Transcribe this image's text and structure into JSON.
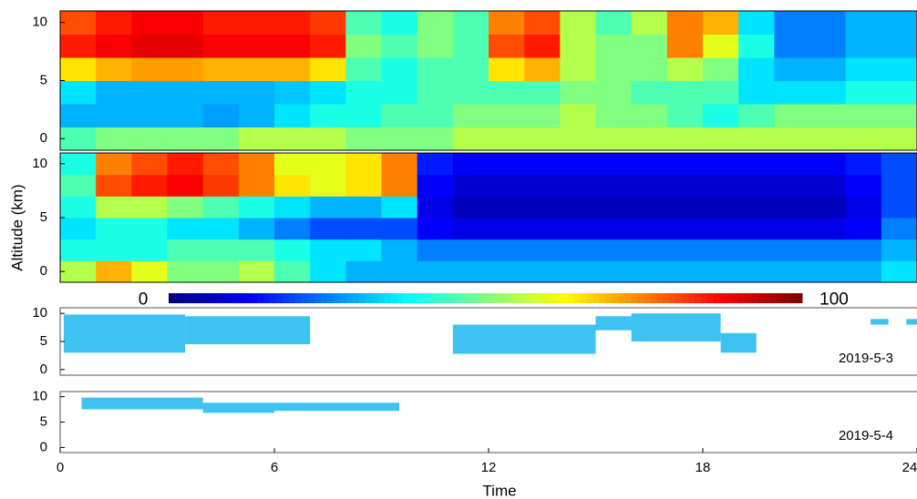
{
  "chart_data": [
    {
      "type": "heatmap",
      "ylabel": "Altitude (km)",
      "colormap": "jet",
      "clim": [
        0,
        100
      ],
      "xbins": [
        0,
        1,
        2,
        3,
        4,
        5,
        6,
        7,
        8,
        9,
        10,
        11,
        12,
        13,
        14,
        15,
        16,
        17,
        18,
        19,
        20,
        21,
        22,
        23,
        24
      ],
      "ybins": [
        -1,
        1,
        3,
        5,
        7,
        9,
        11
      ],
      "xlim": [
        0,
        24
      ],
      "ylim": [
        -1,
        11
      ],
      "yticks": [
        0,
        5,
        10
      ],
      "values": [
        [
          45,
          50,
          50,
          50,
          50,
          55,
          55,
          55,
          50,
          50,
          50,
          55,
          55,
          55,
          55,
          55,
          55,
          55,
          55,
          55,
          55,
          55,
          55,
          55
        ],
        [
          30,
          30,
          30,
          30,
          28,
          30,
          35,
          40,
          40,
          45,
          45,
          50,
          50,
          50,
          55,
          50,
          50,
          45,
          40,
          45,
          50,
          50,
          50,
          50
        ],
        [
          35,
          30,
          30,
          30,
          30,
          30,
          32,
          35,
          40,
          40,
          45,
          45,
          45,
          45,
          50,
          50,
          45,
          45,
          45,
          35,
          35,
          35,
          40,
          40
        ],
        [
          65,
          70,
          72,
          72,
          70,
          70,
          70,
          65,
          45,
          40,
          45,
          45,
          65,
          70,
          55,
          50,
          50,
          55,
          50,
          35,
          30,
          30,
          35,
          35
        ],
        [
          85,
          88,
          90,
          90,
          88,
          88,
          88,
          85,
          50,
          45,
          50,
          45,
          80,
          85,
          55,
          50,
          50,
          75,
          60,
          40,
          25,
          25,
          30,
          30
        ],
        [
          80,
          85,
          88,
          88,
          85,
          85,
          85,
          82,
          45,
          40,
          50,
          45,
          75,
          80,
          55,
          45,
          55,
          75,
          70,
          35,
          25,
          25,
          30,
          30
        ]
      ]
    },
    {
      "type": "heatmap",
      "colormap": "jet",
      "clim": [
        0,
        100
      ],
      "xbins": [
        0,
        1,
        2,
        3,
        4,
        5,
        6,
        7,
        8,
        9,
        10,
        11,
        12,
        13,
        14,
        15,
        16,
        17,
        18,
        19,
        20,
        21,
        22,
        23,
        24
      ],
      "ybins": [
        -1,
        1,
        3,
        5,
        7,
        9,
        11
      ],
      "xlim": [
        0,
        24
      ],
      "ylim": [
        -1,
        11
      ],
      "yticks": [
        0,
        5,
        10
      ],
      "values": [
        [
          55,
          70,
          60,
          50,
          50,
          55,
          45,
          35,
          30,
          30,
          30,
          30,
          30,
          30,
          30,
          30,
          30,
          30,
          30,
          30,
          30,
          30,
          30,
          35
        ],
        [
          40,
          40,
          40,
          45,
          45,
          45,
          40,
          35,
          35,
          30,
          25,
          25,
          25,
          25,
          25,
          25,
          25,
          25,
          25,
          25,
          25,
          25,
          25,
          30
        ],
        [
          35,
          40,
          40,
          35,
          35,
          30,
          25,
          20,
          20,
          20,
          12,
          10,
          10,
          10,
          10,
          10,
          10,
          10,
          10,
          10,
          10,
          10,
          12,
          25
        ],
        [
          40,
          55,
          55,
          50,
          45,
          40,
          35,
          30,
          30,
          35,
          10,
          6,
          6,
          6,
          6,
          6,
          6,
          6,
          6,
          6,
          6,
          6,
          10,
          20
        ],
        [
          45,
          80,
          85,
          88,
          82,
          75,
          65,
          60,
          65,
          75,
          12,
          8,
          8,
          8,
          8,
          8,
          8,
          8,
          8,
          8,
          8,
          8,
          12,
          20
        ],
        [
          40,
          75,
          80,
          85,
          80,
          75,
          60,
          60,
          65,
          75,
          15,
          12,
          12,
          12,
          12,
          12,
          12,
          12,
          12,
          12,
          12,
          12,
          15,
          20
        ]
      ]
    },
    {
      "type": "colorbar",
      "colormap": "jet",
      "clim": [
        0,
        100
      ],
      "cticks": [
        0,
        100
      ]
    },
    {
      "type": "cloud",
      "label": "2019-5-3",
      "color": "#3ec3f0",
      "xlim": [
        0,
        24
      ],
      "ylim": [
        -1,
        11
      ],
      "yticks": [
        0,
        5,
        10
      ],
      "segments": [
        [
          0.1,
          3.5,
          3,
          9.8
        ],
        [
          3.5,
          7,
          4.5,
          9.5
        ],
        [
          11,
          15,
          2.8,
          8
        ],
        [
          15,
          16.2,
          7,
          9.5
        ],
        [
          16,
          18.5,
          5,
          10
        ],
        [
          18.5,
          19.5,
          3,
          6.5
        ],
        [
          22.7,
          23.2,
          8,
          9
        ],
        [
          23.7,
          24,
          8,
          9
        ]
      ]
    },
    {
      "type": "cloud",
      "label": "2019-5-4",
      "color": "#3ec3f0",
      "xlim": [
        0,
        24
      ],
      "ylim": [
        -1,
        11
      ],
      "yticks": [
        0,
        5,
        10
      ],
      "xticks": [
        0,
        6,
        12,
        18,
        24
      ],
      "xlabel": "Time",
      "segments": [
        [
          0.6,
          4,
          7.5,
          9.8
        ],
        [
          4,
          6,
          6.8,
          8.8
        ],
        [
          6,
          9.5,
          7.2,
          8.8
        ]
      ]
    }
  ]
}
